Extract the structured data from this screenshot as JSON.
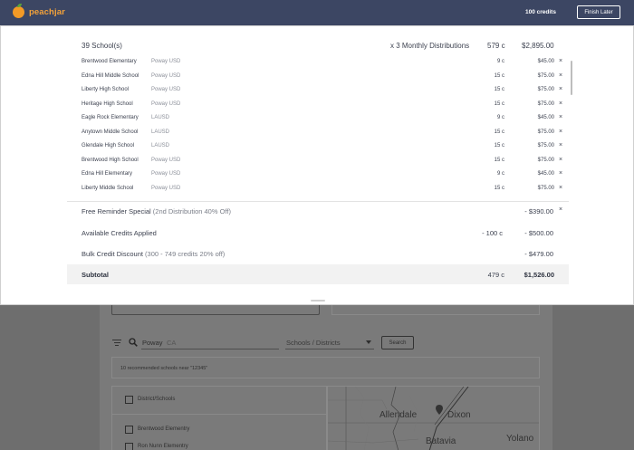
{
  "topbar": {
    "brand": "peachjar",
    "credits": "100 credits",
    "finish_label": "Finish Later"
  },
  "summary": {
    "schools_label": "39 School(s)",
    "distributions": "x 3 Monthly Distributions",
    "credits": "579 c",
    "total": "$2,895.00"
  },
  "schools": [
    {
      "name": "Brentwood Elementary",
      "district": "Poway USD",
      "credits": "9 c",
      "price": "$45.00",
      "remove": "×"
    },
    {
      "name": "Edna Hill Middle School",
      "district": "Poway USD",
      "credits": "15 c",
      "price": "$75.00",
      "remove": "×"
    },
    {
      "name": "Liberty High School",
      "district": "Poway USD",
      "credits": "15 c",
      "price": "$75.00",
      "remove": "×"
    },
    {
      "name": "Heritage High School",
      "district": "Poway USD",
      "credits": "15 c",
      "price": "$75.00",
      "remove": "×"
    },
    {
      "name": "Eagle Rock Elementary",
      "district": "LAUSD",
      "credits": "9 c",
      "price": "$45.00",
      "remove": "×"
    },
    {
      "name": "Anytown Middle School",
      "district": "LAUSD",
      "credits": "15 c",
      "price": "$75.00",
      "remove": "×"
    },
    {
      "name": "Glendale High School",
      "district": "LAUSD",
      "credits": "15 c",
      "price": "$75.00",
      "remove": "×"
    },
    {
      "name": "Brentwood High School",
      "district": "Poway USD",
      "credits": "15 c",
      "price": "$75.00",
      "remove": "×"
    },
    {
      "name": "Edna Hill Elementary",
      "district": "Poway USD",
      "credits": "9 c",
      "price": "$45.00",
      "remove": "×"
    },
    {
      "name": "Liberty Middle School",
      "district": "Poway USD",
      "credits": "15 c",
      "price": "$75.00",
      "remove": "×"
    }
  ],
  "adjustments": {
    "reminder_label": "Free Reminder Special",
    "reminder_note": "(2nd Distribution 40% Off)",
    "reminder_value": "- $390.00",
    "reminder_remove": "×",
    "credits_label": "Available Credits Applied",
    "credits_used": "- 100 c",
    "credits_value": "- $500.00",
    "bulk_label": "Bulk Credit Discount",
    "bulk_note": "(300 - 749 credits 20% off)",
    "bulk_value": "- $479.00"
  },
  "subtotal": {
    "label": "Subtotal",
    "credits": "479 c",
    "total": "$1,526.00"
  },
  "background": {
    "search_value": "Poway",
    "search_state": "CA",
    "type_select": "Schools / Districts",
    "search_button": "Search",
    "recommended_text": "10 recommended schools near \"12345\"",
    "list_header": "District/Schools",
    "list_items": [
      "Brentwood Elementry",
      "Ron Nunn Elementry"
    ],
    "map_labels": [
      "Allendale",
      "Dixon",
      "Batavia",
      "Yolano"
    ]
  }
}
